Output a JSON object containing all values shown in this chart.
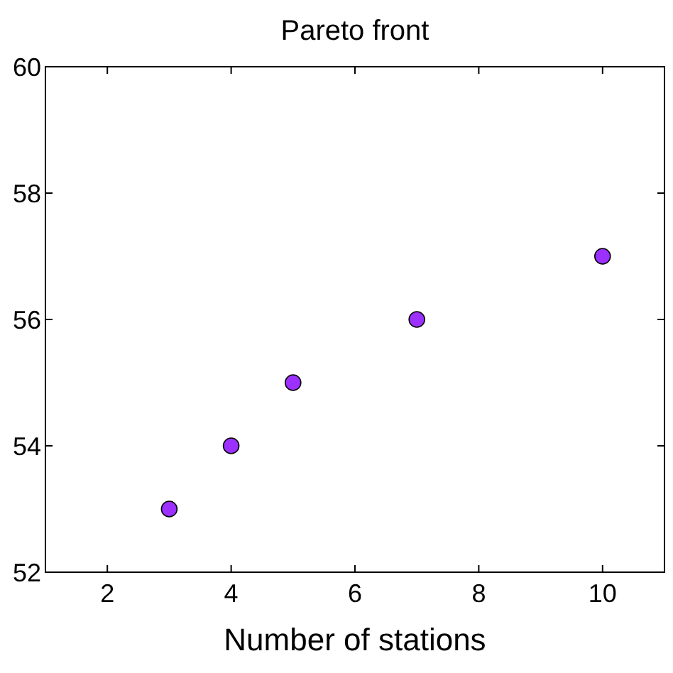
{
  "chart_data": {
    "type": "scatter",
    "title": "Pareto front",
    "xlabel": "Number of stations",
    "x": [
      3,
      4,
      5,
      7,
      10
    ],
    "values": [
      53,
      54,
      55,
      56,
      57
    ],
    "color": "#9b30ff",
    "marker": "circle",
    "xlim": [
      1,
      11
    ],
    "xticks": [
      2,
      4,
      6,
      8,
      10
    ],
    "ylim": [
      52,
      60
    ],
    "yticks": [
      52,
      54,
      56,
      58,
      60
    ],
    "grid": false
  }
}
